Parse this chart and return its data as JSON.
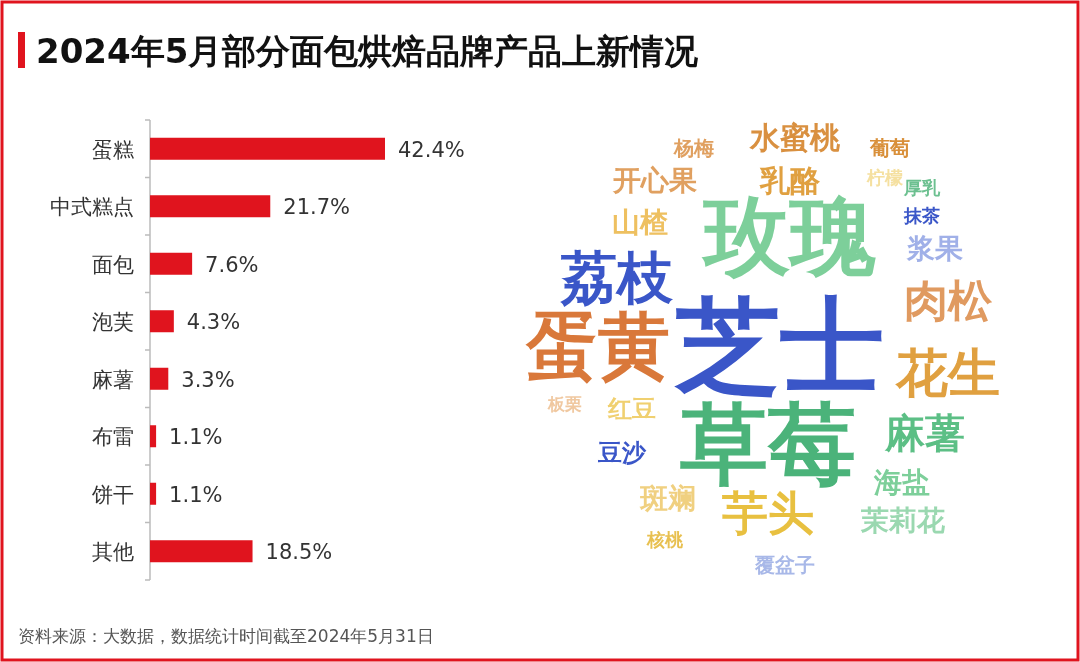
{
  "chart_data": [
    {
      "type": "bar",
      "orientation": "horizontal",
      "title": "2024年5月部分面包烘焙品牌产品上新情况",
      "categories": [
        "蛋糕",
        "中式糕点",
        "面包",
        "泡芙",
        "麻薯",
        "布雷",
        "饼干",
        "其他"
      ],
      "values": [
        42.4,
        21.7,
        7.6,
        4.3,
        3.3,
        1.1,
        1.1,
        18.5
      ],
      "value_labels": [
        "42.4%",
        "21.7%",
        "7.6%",
        "4.3%",
        "3.3%",
        "1.1%",
        "1.1%",
        "18.5%"
      ],
      "color": "#e0141e",
      "annotations": [
        "资料来源：大数据，数据统计时间截至2024年5月31日"
      ]
    },
    {
      "type": "other",
      "annotations": [
        "芝士",
        "玫瑰",
        "草莓",
        "蛋黄",
        "荔枝",
        "花生",
        "肉松",
        "麻薯",
        "芋头",
        "水蜜桃",
        "乳酪",
        "开心果",
        "山楂",
        "浆果",
        "海盐",
        "茉莉花",
        "斑斓",
        "红豆",
        "豆沙",
        "杨梅",
        "葡萄",
        "柠檬",
        "厚乳",
        "抹茶",
        "板栗",
        "核桃",
        "覆盆子"
      ],
      "colors": [
        "#3a56c8",
        "#7dcf9a",
        "#4bb37a",
        "#d9783a",
        "#3a56c8",
        "#e0a040",
        "#e09a60",
        "#5cbf85",
        "#e8c040",
        "#d99040",
        "#e0a040",
        "#e0a060",
        "#eec060",
        "#a0b0e8",
        "#7dcf9a",
        "#9ad8b0",
        "#f0d080",
        "#f0d070",
        "#3a56c8",
        "#e0a060",
        "#d9903a",
        "#f5e0a0",
        "#6cc090",
        "#3a56c8",
        "#f0c8a0",
        "#e8c050",
        "#a8b8e8"
      ]
    }
  ]
}
